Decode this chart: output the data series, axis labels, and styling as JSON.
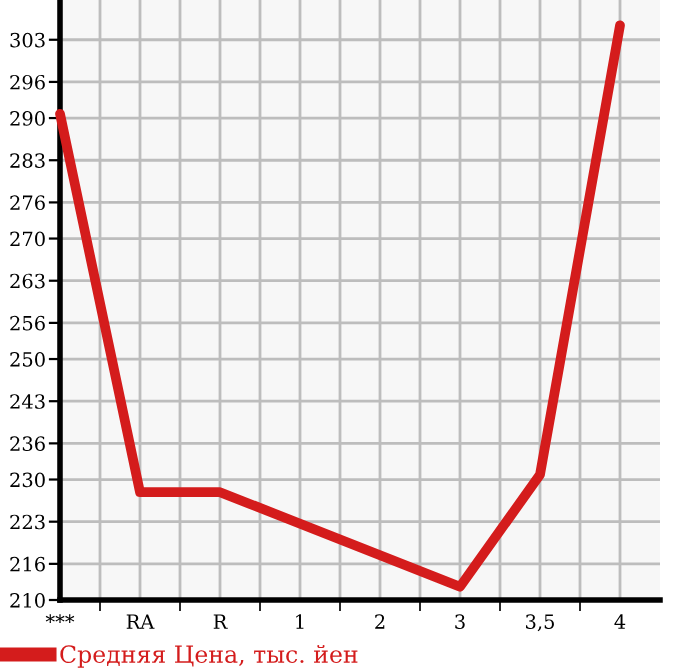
{
  "chart_data": {
    "type": "line",
    "categories": [
      "***",
      "RA",
      "R",
      "1",
      "2",
      "3",
      "3,5",
      "4"
    ],
    "series": [
      {
        "name": "Средняя Цена, тыс. йен",
        "color": "#d41c1c",
        "values": [
          290.7,
          227.9,
          227.9,
          null,
          null,
          212.2,
          230.8,
          305.4
        ]
      }
    ],
    "ylim": [
      210,
      309.6
    ],
    "yticks": [
      210,
      216,
      223,
      230,
      236,
      243,
      250,
      256,
      263,
      270,
      276,
      283,
      290,
      296,
      303
    ],
    "grid": true,
    "legend": "bottom",
    "marker": "none",
    "line_style": "solid"
  }
}
